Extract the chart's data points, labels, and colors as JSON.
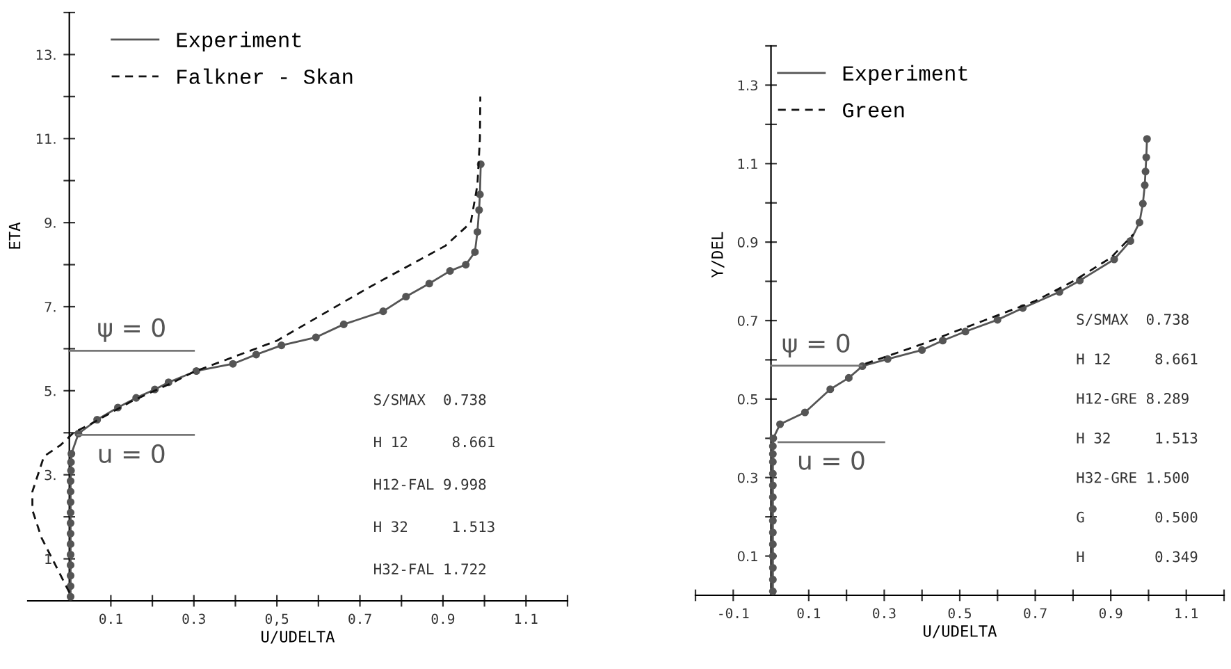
{
  "chart_data": [
    {
      "type": "line",
      "xlabel": "U/UDELTA",
      "ylabel": "ETA",
      "legend": "top left",
      "xlim": [
        -0.1,
        1.2
      ],
      "ylim": [
        0,
        14
      ],
      "xticks": [
        {
          "value": 0.1,
          "label": "0.1"
        },
        {
          "value": 0.2,
          "label": null
        },
        {
          "value": 0.3,
          "label": "0.3"
        },
        {
          "value": 0.4,
          "label": null
        },
        {
          "value": 0.5,
          "label": "0,5"
        },
        {
          "value": 0.6,
          "label": null
        },
        {
          "value": 0.7,
          "label": "0.7"
        },
        {
          "value": 0.8,
          "label": null
        },
        {
          "value": 0.9,
          "label": "0.9"
        },
        {
          "value": 1.0,
          "label": null
        },
        {
          "value": 1.1,
          "label": "1.1"
        },
        {
          "value": 1.2,
          "label": null
        }
      ],
      "yticks": [
        {
          "value": 1,
          "label": "1."
        },
        {
          "value": 2,
          "label": null
        },
        {
          "value": 3,
          "label": "3."
        },
        {
          "value": 4,
          "label": null
        },
        {
          "value": 5,
          "label": "5."
        },
        {
          "value": 6,
          "label": null
        },
        {
          "value": 7,
          "label": "7."
        },
        {
          "value": 8,
          "label": null
        },
        {
          "value": 9,
          "label": "9."
        },
        {
          "value": 10,
          "label": null
        },
        {
          "value": 11,
          "label": "11."
        },
        {
          "value": 12,
          "label": null
        },
        {
          "value": 13,
          "label": "13."
        },
        {
          "value": 14,
          "label": null
        }
      ],
      "series": [
        {
          "name": "Experiment",
          "color": "#555555",
          "line_style": "solid",
          "marker": "circle",
          "x": [
            0.003,
            0.003,
            0.003,
            0.003,
            0.003,
            0.003,
            0.003,
            0.003,
            0.003,
            0.003,
            0.003,
            0.003,
            0.004,
            0.004,
            0.005,
            0.022,
            0.067,
            0.117,
            0.161,
            0.206,
            0.239,
            0.306,
            0.394,
            0.45,
            0.511,
            0.594,
            0.661,
            0.756,
            0.811,
            0.867,
            0.917,
            0.955,
            0.977,
            0.983,
            0.987,
            0.989,
            0.991
          ],
          "values": [
            0.1,
            0.35,
            0.6,
            0.85,
            1.1,
            1.35,
            1.6,
            1.85,
            2.1,
            2.35,
            2.6,
            2.85,
            3.1,
            3.3,
            3.5,
            3.98,
            4.31,
            4.6,
            4.83,
            5.03,
            5.2,
            5.47,
            5.64,
            5.86,
            6.08,
            6.27,
            6.58,
            6.89,
            7.24,
            7.55,
            7.85,
            8.0,
            8.3,
            8.78,
            9.3,
            9.67,
            10.39
          ]
        },
        {
          "name": "Falkner - Skan",
          "color": "#111111",
          "line_style": "dashed",
          "marker": "none",
          "x": [
            0.0,
            -0.036,
            -0.067,
            -0.089,
            -0.089,
            -0.061,
            -0.022,
            0.01,
            0.05,
            0.15,
            0.25,
            0.3,
            0.5,
            0.722,
            0.906,
            0.967,
            0.983,
            0.989,
            0.99
          ],
          "values": [
            0.2,
            0.9,
            1.5,
            2.16,
            2.6,
            3.44,
            3.7,
            4.0,
            4.2,
            4.75,
            5.2,
            5.45,
            6.19,
            7.46,
            8.45,
            9.0,
            9.9,
            11.0,
            12.0
          ]
        },
        {
          "color": "#777777",
          "line_style": "solid",
          "marker": "none",
          "x": [
            0.0,
            0.3
          ],
          "values": [
            5.95,
            5.95
          ]
        },
        {
          "color": "#777777",
          "line_style": "solid",
          "marker": "none",
          "x": [
            0.02,
            0.3
          ],
          "values": [
            3.95,
            3.95
          ]
        }
      ],
      "annotations": [
        {
          "text": "ψ = 0",
          "x": 0.15,
          "y": 5.95
        },
        {
          "text": "u = 0",
          "x": 0.15,
          "y": 3.95
        },
        "S/SMAX  0.738",
        "H 12     8.661",
        "H12-FAL 9.998",
        "H 32     1.513",
        "H32-FAL 1.722"
      ]
    },
    {
      "type": "line",
      "xlabel": "U/UDELTA",
      "ylabel": "Y/DEL",
      "legend": "top left",
      "xlim": [
        -0.2,
        1.2
      ],
      "ylim": [
        0,
        1.4
      ],
      "xticks": [
        {
          "value": -0.2,
          "label": null
        },
        {
          "value": -0.1,
          "label": "-0.1"
        },
        {
          "value": 0.1,
          "label": "0.1"
        },
        {
          "value": 0.2,
          "label": null
        },
        {
          "value": 0.3,
          "label": "0.3"
        },
        {
          "value": 0.4,
          "label": null
        },
        {
          "value": 0.5,
          "label": "0.5"
        },
        {
          "value": 0.6,
          "label": null
        },
        {
          "value": 0.7,
          "label": "0.7"
        },
        {
          "value": 0.8,
          "label": null
        },
        {
          "value": 0.9,
          "label": "0.9"
        },
        {
          "value": 1.0,
          "label": null
        },
        {
          "value": 1.1,
          "label": "1.1"
        },
        {
          "value": 1.2,
          "label": null
        }
      ],
      "yticks": [
        {
          "value": 0.1,
          "label": "0.1"
        },
        {
          "value": 0.2,
          "label": null
        },
        {
          "value": 0.3,
          "label": "0.3"
        },
        {
          "value": 0.4,
          "label": null
        },
        {
          "value": 0.5,
          "label": "0.5"
        },
        {
          "value": 0.6,
          "label": null
        },
        {
          "value": 0.7,
          "label": "0.7"
        },
        {
          "value": 0.8,
          "label": null
        },
        {
          "value": 0.9,
          "label": "0.9"
        },
        {
          "value": 1.0,
          "label": null
        },
        {
          "value": 1.1,
          "label": "1.1"
        },
        {
          "value": 1.2,
          "label": null
        },
        {
          "value": 1.3,
          "label": "1.3"
        },
        {
          "value": 1.4,
          "label": null
        }
      ],
      "series": [
        {
          "name": "Experiment",
          "color": "#555555",
          "line_style": "solid",
          "marker": "circle",
          "x": [
            0.005,
            0.005,
            0.005,
            0.005,
            0.005,
            0.005,
            0.005,
            0.005,
            0.005,
            0.005,
            0.005,
            0.005,
            0.005,
            0.005,
            0.006,
            0.024,
            0.09,
            0.157,
            0.206,
            0.242,
            0.309,
            0.4,
            0.455,
            0.515,
            0.6,
            0.667,
            0.764,
            0.818,
            0.909,
            0.952,
            0.976,
            0.985,
            0.99,
            0.992,
            0.994,
            0.996
          ],
          "values": [
            0.01,
            0.04,
            0.07,
            0.1,
            0.13,
            0.16,
            0.19,
            0.22,
            0.25,
            0.28,
            0.31,
            0.34,
            0.36,
            0.38,
            0.4,
            0.436,
            0.466,
            0.525,
            0.554,
            0.584,
            0.602,
            0.625,
            0.649,
            0.672,
            0.702,
            0.732,
            0.773,
            0.802,
            0.856,
            0.903,
            0.95,
            0.998,
            1.045,
            1.08,
            1.116,
            1.163
          ]
        },
        {
          "name": "Green",
          "color": "#111111",
          "line_style": "dashed",
          "marker": "none",
          "x": [
            0.25,
            0.4,
            0.55,
            0.7,
            0.8,
            0.9,
            0.96
          ],
          "values": [
            0.59,
            0.64,
            0.695,
            0.75,
            0.8,
            0.86,
            0.92
          ]
        },
        {
          "color": "#777777",
          "line_style": "solid",
          "marker": "none",
          "x": [
            0.0,
            0.24
          ],
          "values": [
            0.585,
            0.585
          ]
        },
        {
          "color": "#777777",
          "line_style": "solid",
          "marker": "none",
          "x": [
            0.02,
            0.3
          ],
          "values": [
            0.39,
            0.39
          ]
        }
      ],
      "annotations": [
        {
          "text": "ψ = 0",
          "x": 0.12,
          "y": 0.585
        },
        {
          "text": "u = 0",
          "x": 0.16,
          "y": 0.39
        },
        "S/SMAX  0.738",
        "H 12     8.661",
        "H12-GRE 8.289",
        "H 32     1.513",
        "H32-GRE 1.500",
        "G        0.500",
        "H        0.349"
      ]
    }
  ]
}
